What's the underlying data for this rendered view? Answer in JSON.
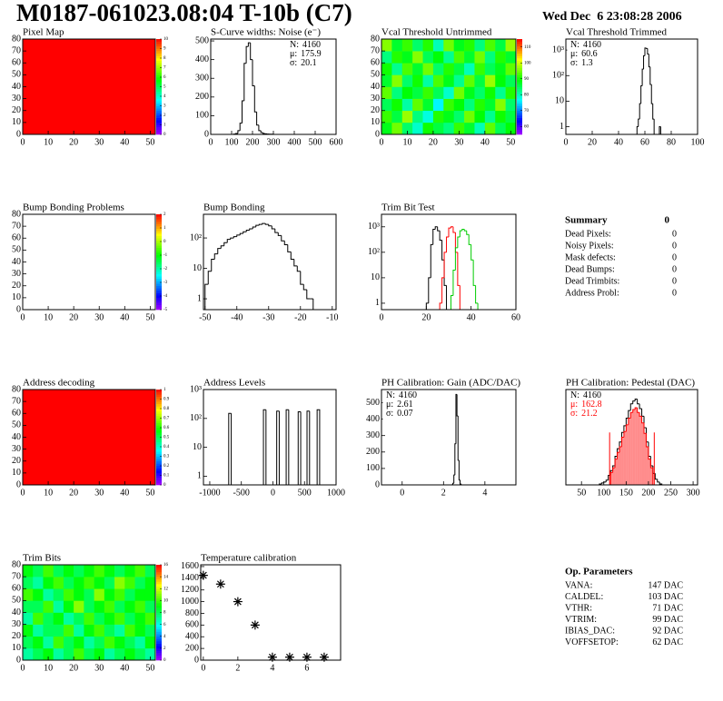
{
  "header": {
    "title": "M0187-061023.08:04 T-10b (C7)",
    "date": "Wed Dec  6 23:08:28 2006"
  },
  "chart_data": [
    {
      "type": "heatmap",
      "title": "Pixel Map",
      "xlim": [
        0,
        52
      ],
      "ylim": [
        0,
        80
      ],
      "xticks": [
        0,
        10,
        20,
        30,
        40,
        50
      ],
      "yticks": [
        0,
        10,
        20,
        30,
        40,
        50,
        60,
        70,
        80
      ],
      "zlim": [
        0,
        10
      ],
      "zticks": [
        0,
        1,
        2,
        3,
        4,
        5,
        6,
        7,
        8,
        9,
        10
      ],
      "z": [
        [
          10
        ]
      ]
    },
    {
      "type": "histogram",
      "title": "S-Curve widths: Noise (e⁻)",
      "xlim": [
        0,
        600
      ],
      "ylim": [
        0,
        510
      ],
      "xticks": [
        0,
        100,
        200,
        300,
        400,
        500,
        600
      ],
      "yticks": [
        0,
        100,
        200,
        300,
        400,
        500
      ],
      "bins": [
        100,
        110,
        120,
        130,
        140,
        150,
        160,
        170,
        180,
        190,
        200,
        210,
        220,
        230,
        240,
        250,
        260,
        270,
        280,
        290,
        300
      ],
      "series": [
        {
          "color": "#000000",
          "values": [
            0,
            2,
            5,
            20,
            60,
            180,
            380,
            470,
            490,
            400,
            260,
            120,
            50,
            20,
            10,
            5,
            3,
            2,
            1,
            1
          ]
        }
      ],
      "stats_corner": "top-right",
      "stats": [
        {
          "label": "N:",
          "value": 4160
        },
        {
          "label": "μ:",
          "value": 175.9
        },
        {
          "label": "σ:",
          "value": 20.1
        }
      ]
    },
    {
      "type": "heatmap",
      "title": "Vcal Threshold Untrimmed",
      "xlim": [
        0,
        52
      ],
      "ylim": [
        0,
        80
      ],
      "xticks": [
        0,
        10,
        20,
        30,
        40,
        50
      ],
      "yticks": [
        0,
        10,
        20,
        30,
        40,
        50,
        60,
        70,
        80
      ],
      "zlim": [
        55,
        115
      ],
      "zticks": [
        60,
        70,
        80,
        90,
        100,
        110
      ],
      "z": [
        [
          88,
          95,
          84,
          79,
          90,
          86,
          83,
          92,
          87,
          80,
          94,
          85,
          89
        ],
        [
          92,
          86,
          97,
          83,
          78,
          91,
          88,
          84,
          95,
          89,
          82,
          90,
          86
        ],
        [
          85,
          90,
          81,
          94,
          87,
          76,
          92,
          89,
          83,
          91,
          87,
          96,
          84
        ],
        [
          94,
          83,
          89,
          86,
          92,
          85,
          79,
          95,
          88,
          84,
          90,
          82,
          91
        ],
        [
          87,
          96,
          84,
          90,
          81,
          93,
          88,
          82,
          94,
          86,
          97,
          89,
          85
        ],
        [
          90,
          82,
          93,
          87,
          95,
          84,
          91,
          86,
          80,
          92,
          85,
          88,
          94
        ],
        [
          83,
          91,
          88,
          96,
          85,
          89,
          82,
          93,
          87,
          95,
          83,
          91,
          87
        ],
        [
          96,
          87,
          92,
          84,
          91,
          80,
          95,
          88,
          91,
          83,
          93,
          86,
          97
        ]
      ]
    },
    {
      "type": "histogram",
      "title": "Vcal Threshold Trimmed",
      "log_y": true,
      "xlim": [
        0,
        100
      ],
      "ylim": [
        0.5,
        2700
      ],
      "xticks": [
        0,
        20,
        40,
        60,
        80,
        100
      ],
      "yticks": [
        1,
        10,
        {
          "value": 100,
          "label": "10²"
        },
        {
          "value": 1000,
          "label": "10³"
        }
      ],
      "bins": [
        54,
        55,
        56,
        57,
        58,
        59,
        60,
        61,
        62,
        63,
        64,
        65,
        66,
        67,
        68,
        69,
        70,
        71,
        72,
        73
      ],
      "series": [
        {
          "color": "#000000",
          "values": [
            1,
            2,
            8,
            40,
            180,
            600,
            1200,
            1150,
            700,
            220,
            45,
            8,
            2,
            0,
            0,
            0,
            0,
            1,
            0
          ]
        }
      ],
      "stats_corner": "top-left",
      "stats": [
        {
          "label": "N:",
          "value": 4160
        },
        {
          "label": "μ:",
          "value": 60.6
        },
        {
          "label": "σ:",
          "value": 1.3
        }
      ]
    },
    {
      "type": "heatmap",
      "title": "Bump Bonding Problems",
      "xlim": [
        0,
        52
      ],
      "ylim": [
        0,
        80
      ],
      "xticks": [
        0,
        10,
        20,
        30,
        40,
        50
      ],
      "yticks": [
        0,
        10,
        20,
        30,
        40,
        50,
        60,
        70,
        80
      ],
      "zlim": [
        -5,
        2
      ],
      "zticks": [
        -5,
        -4,
        -3,
        -2,
        -1,
        0,
        1,
        2
      ]
    },
    {
      "type": "histogram",
      "title": "Bump Bonding",
      "log_y": true,
      "xlim": [
        -50.5,
        -8.8
      ],
      "ylim": [
        0.44,
        600
      ],
      "xticks": [
        -50,
        -40,
        -30,
        -20,
        -10
      ],
      "yticks": [
        1,
        10,
        {
          "value": 100,
          "label": "10²"
        }
      ],
      "bins": [
        -50,
        -49,
        -48,
        -47,
        -46,
        -45,
        -44,
        -43,
        -42,
        -41,
        -40,
        -39,
        -38,
        -37,
        -36,
        -35,
        -34,
        -33,
        -32,
        -31,
        -30,
        -29,
        -28,
        -27,
        -26,
        -25,
        -24,
        -23,
        -22,
        -21,
        -20,
        -19,
        -18,
        -17,
        -16,
        -15,
        -14
      ],
      "series": [
        {
          "color": "#000000",
          "values": [
            3,
            8,
            20,
            30,
            45,
            55,
            70,
            90,
            100,
            110,
            125,
            140,
            160,
            180,
            200,
            230,
            260,
            280,
            300,
            280,
            250,
            200,
            150,
            120,
            80,
            60,
            35,
            20,
            12,
            8,
            3,
            2,
            1,
            1,
            0,
            0
          ]
        }
      ]
    },
    {
      "type": "histogram",
      "title": "Trim Bit Test",
      "log_y": true,
      "xlim": [
        0,
        60
      ],
      "ylim": [
        0.56,
        3100
      ],
      "xticks": [
        0,
        20,
        40,
        60
      ],
      "yticks": [
        1,
        10,
        {
          "value": 100,
          "label": "10²"
        },
        {
          "value": 1000,
          "label": "10³"
        }
      ],
      "bins": [
        18,
        19,
        20,
        21,
        22,
        23,
        24,
        25,
        26,
        27,
        28,
        29,
        30,
        31,
        32,
        33,
        34,
        35,
        36,
        37,
        38,
        39,
        40,
        41,
        42,
        43,
        44
      ],
      "series": [
        {
          "color": "#000000",
          "values": [
            0,
            0,
            1,
            10,
            200,
            800,
            1000,
            700,
            300,
            50,
            5,
            0,
            0,
            0,
            0,
            0,
            0,
            0,
            0,
            0,
            0,
            0,
            0,
            0,
            0,
            0
          ]
        },
        {
          "color": "#ff0000",
          "values": [
            0,
            0,
            0,
            0,
            0,
            0,
            0,
            0,
            1,
            10,
            100,
            400,
            900,
            1000,
            600,
            100,
            5,
            0,
            0,
            0,
            0,
            0,
            0,
            0,
            0,
            0
          ]
        },
        {
          "color": "#00cc00",
          "values": [
            0,
            0,
            0,
            0,
            0,
            0,
            0,
            0,
            0,
            0,
            0,
            0,
            0,
            2,
            20,
            150,
            400,
            700,
            800,
            700,
            500,
            200,
            50,
            5,
            1,
            0
          ]
        }
      ]
    },
    {
      "type": "heatmap",
      "title": "Address decoding",
      "xlim": [
        0,
        52
      ],
      "ylim": [
        0,
        80
      ],
      "xticks": [
        0,
        10,
        20,
        30,
        40,
        50
      ],
      "yticks": [
        0,
        10,
        20,
        30,
        40,
        50,
        60,
        70,
        80
      ],
      "zlim": [
        0,
        1
      ],
      "zticks": [
        0,
        0.1,
        0.2,
        0.3,
        0.4,
        0.5,
        0.6,
        0.7,
        0.8,
        0.9,
        1
      ],
      "z": [
        [
          1
        ]
      ]
    },
    {
      "type": "histogram",
      "title": "Address Levels",
      "log_y": true,
      "xlim": [
        -1100,
        1000
      ],
      "ylim": [
        0.5,
        1000
      ],
      "xticks": [
        -1000,
        -500,
        0,
        500,
        1000
      ],
      "yticks": [
        1,
        10,
        {
          "value": 100,
          "label": "10²"
        },
        {
          "value": 1000,
          "label": "10³"
        }
      ],
      "bins": [
        -700,
        -660,
        -150,
        -110,
        60,
        100,
        210,
        250,
        400,
        440,
        540,
        580,
        700,
        740
      ],
      "series": [
        {
          "color": "#000000",
          "values": [
            150,
            0,
            200,
            0,
            180,
            0,
            200,
            0,
            170,
            0,
            180,
            0,
            200
          ]
        }
      ]
    },
    {
      "type": "histogram",
      "title": "PH Calibration: Gain (ADC/DAC)",
      "xlim": [
        -1,
        5.5
      ],
      "ylim": [
        0,
        580
      ],
      "xticks": [
        0,
        2,
        4
      ],
      "yticks": [
        0,
        100,
        200,
        300,
        400,
        500
      ],
      "bins": [
        2.4,
        2.45,
        2.5,
        2.55,
        2.6,
        2.65,
        2.7,
        2.75,
        2.8,
        2.85
      ],
      "series": [
        {
          "color": "#000000",
          "values": [
            1,
            10,
            60,
            250,
            550,
            420,
            150,
            30,
            5
          ]
        }
      ],
      "stats_corner": "top-left",
      "stats": [
        {
          "label": "N:",
          "value": 4160
        },
        {
          "label": "μ:",
          "value": 2.61
        },
        {
          "label": "σ:",
          "value": 0.07
        }
      ]
    },
    {
      "type": "histogram",
      "title": "PH Calibration: Pedestal (DAC)",
      "xlim": [
        15,
        310
      ],
      "ylim": [
        0,
        100
      ],
      "xticks": [
        50,
        100,
        150,
        200,
        250,
        300
      ],
      "yticks": [],
      "bins": [
        90,
        95,
        100,
        105,
        110,
        115,
        120,
        125,
        130,
        135,
        140,
        145,
        150,
        155,
        160,
        165,
        170,
        175,
        180,
        185,
        190,
        195,
        200,
        205,
        210,
        215,
        220,
        225,
        230
      ],
      "series": [
        {
          "color": "#000000",
          "values": [
            1,
            2,
            3,
            5,
            10,
            15,
            20,
            30,
            38,
            45,
            55,
            62,
            70,
            78,
            85,
            88,
            90,
            85,
            80,
            72,
            60,
            45,
            30,
            20,
            12,
            6,
            3,
            1
          ]
        },
        {
          "color": "#ff0000",
          "filled": true,
          "values": [
            0,
            0,
            0,
            0,
            0,
            13,
            18,
            27,
            34,
            40,
            50,
            56,
            63,
            70,
            76,
            79,
            81,
            76,
            72,
            65,
            54,
            40,
            27,
            18,
            0,
            0,
            0,
            0
          ]
        }
      ],
      "cut_lines": [
        113,
        213
      ],
      "cut_color": "#ff0000",
      "stats_corner": "top-left",
      "stats": [
        {
          "label": "N:",
          "value": 4160
        },
        {
          "label": "μ:",
          "value": 162.8,
          "color": "#ff0000"
        },
        {
          "label": "σ:",
          "value": 21.2,
          "color": "#ff0000"
        }
      ]
    },
    {
      "type": "heatmap",
      "title": "Trim Bits",
      "xlim": [
        0,
        52
      ],
      "ylim": [
        0,
        80
      ],
      "xticks": [
        0,
        10,
        20,
        30,
        40,
        50
      ],
      "yticks": [
        0,
        10,
        20,
        30,
        40,
        50,
        60,
        70,
        80
      ],
      "zlim": [
        0,
        16
      ],
      "zticks": [
        0,
        2,
        4,
        6,
        8,
        10,
        12,
        14,
        16
      ],
      "z": [
        [
          7,
          8,
          9,
          7,
          8,
          10,
          8,
          9,
          7,
          8,
          9,
          8,
          7
        ],
        [
          8,
          9,
          7,
          10,
          8,
          9,
          7,
          8,
          10,
          9,
          8,
          7,
          9
        ],
        [
          9,
          7,
          8,
          8,
          10,
          7,
          9,
          10,
          8,
          7,
          10,
          9,
          8
        ],
        [
          7,
          10,
          8,
          9,
          7,
          8,
          10,
          8,
          9,
          10,
          8,
          9,
          10
        ],
        [
          8,
          8,
          10,
          7,
          9,
          11,
          8,
          9,
          10,
          8,
          9,
          10,
          8
        ],
        [
          10,
          9,
          7,
          8,
          10,
          9,
          8,
          11,
          9,
          10,
          8,
          9,
          9
        ],
        [
          8,
          7,
          9,
          10,
          8,
          9,
          10,
          9,
          8,
          11,
          10,
          8,
          9
        ],
        [
          9,
          8,
          10,
          8,
          9,
          8,
          9,
          10,
          9,
          8,
          9,
          10,
          8
        ]
      ]
    },
    {
      "type": "scatter",
      "title": "Temperature calibration",
      "xlim": [
        -0.15,
        7.95
      ],
      "ylim": [
        0,
        1630
      ],
      "xticks": [
        0,
        2,
        4,
        6
      ],
      "yticks": [
        0,
        200,
        400,
        600,
        800,
        1000,
        1200,
        1400,
        1600
      ],
      "x": [
        0,
        1,
        2,
        3,
        4,
        5,
        6,
        7
      ],
      "values": [
        1450,
        1300,
        1000,
        600,
        50,
        50,
        50,
        50
      ],
      "color": "#000000"
    }
  ],
  "summary": {
    "title": "Summary",
    "total": 0,
    "rows": [
      {
        "label": "Dead Pixels:",
        "value": 0
      },
      {
        "label": "Noisy Pixels:",
        "value": 0
      },
      {
        "label": "Mask defects:",
        "value": 0
      },
      {
        "label": "Dead Bumps:",
        "value": 0
      },
      {
        "label": "Dead Trimbits:",
        "value": 0
      },
      {
        "label": "Address Probl:",
        "value": 0
      }
    ]
  },
  "op_parameters": {
    "title": "Op. Parameters",
    "rows": [
      {
        "label": "VANA:",
        "value": "147 DAC"
      },
      {
        "label": "CALDEL:",
        "value": "103 DAC"
      },
      {
        "label": "VTHR:",
        "value": "71 DAC"
      },
      {
        "label": "VTRIM:",
        "value": "99 DAC"
      },
      {
        "label": "IBIAS_DAC:",
        "value": "92 DAC"
      },
      {
        "label": "VOFFSETOP:",
        "value": "62 DAC"
      }
    ]
  }
}
